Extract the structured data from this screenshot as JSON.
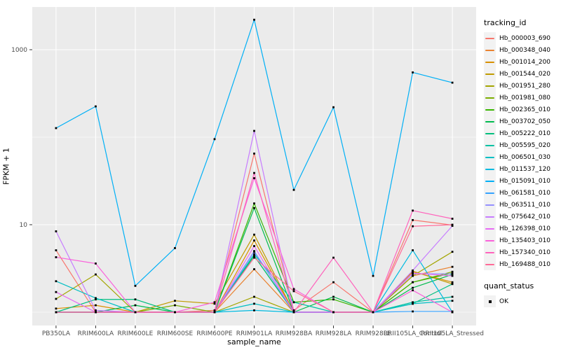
{
  "chart_data": {
    "type": "line",
    "title": "",
    "xlabel": "sample_name",
    "ylabel": "FPKM + 1",
    "y_scale": "log10",
    "y_tick_labels": [
      "1000",
      "10"
    ],
    "y_tick_values": [
      1000,
      10
    ],
    "y_minor_gridline_values": [
      100,
      1
    ],
    "ylim": [
      0.7,
      3080
    ],
    "grid": true,
    "legend_position": "right",
    "panel_bg": "#EBEBEB",
    "grid_color": "#FFFFFF",
    "tick_text_color": "#4D4D4D",
    "point_color": "#000000",
    "categories": [
      "PB350LA",
      "RRIM600LA",
      "RRIM600LE",
      "RRIM600SE",
      "RRIM600PE",
      "RRIM901LA",
      "RRIM928BA",
      "RRIM928LA",
      "RRIM928LE",
      "RRII105LA_Control",
      "RRII105LA_Stressed"
    ],
    "series": [
      {
        "name": "Hb_000003_690",
        "color": "#F8766D",
        "values": [
          5.1,
          1.0,
          1.0,
          1.0,
          1.05,
          65,
          1.05,
          2.2,
          1.0,
          11.3,
          9.9
        ]
      },
      {
        "name": "Hb_000348_040",
        "color": "#EA8331",
        "values": [
          1.0,
          1.0,
          1.0,
          1.0,
          1.0,
          3.1,
          1.0,
          1.0,
          1.0,
          2.6,
          3.3
        ]
      },
      {
        "name": "Hb_001014_200",
        "color": "#D89000",
        "values": [
          1.1,
          1.2,
          1.0,
          1.0,
          1.0,
          6.6,
          1.0,
          1.0,
          1.0,
          2.9,
          2.2
        ]
      },
      {
        "name": "Hb_001544_020",
        "color": "#C09B00",
        "values": [
          1.0,
          1.0,
          1.0,
          1.35,
          1.25,
          7.7,
          1.0,
          1.0,
          1.0,
          2.95,
          2.1
        ]
      },
      {
        "name": "Hb_001951_280",
        "color": "#A3A500",
        "values": [
          1.42,
          2.7,
          1.0,
          1.0,
          1.0,
          1.5,
          1.0,
          1.0,
          1.0,
          2.6,
          4.9
        ]
      },
      {
        "name": "Hb_001981_080",
        "color": "#7CAE00",
        "values": [
          1.0,
          1.0,
          1.0,
          1.2,
          1.0,
          4.4,
          1.0,
          1.0,
          1.0,
          2.2,
          2.9
        ]
      },
      {
        "name": "Hb_002365_010",
        "color": "#39B600",
        "values": [
          1.0,
          1.0,
          1.0,
          1.0,
          1.0,
          17.5,
          1.3,
          1.4,
          1.0,
          2.2,
          2.8
        ]
      },
      {
        "name": "Hb_003702_050",
        "color": "#00BB4E",
        "values": [
          1.0,
          1.0,
          1.2,
          1.0,
          1.0,
          15.5,
          1.0,
          1.5,
          1.0,
          1.9,
          2.7
        ]
      },
      {
        "name": "Hb_005222_010",
        "color": "#00BF7D",
        "values": [
          1.0,
          1.4,
          1.4,
          1.0,
          1.0,
          4.4,
          1.0,
          1.0,
          1.0,
          1.25,
          2.1
        ]
      },
      {
        "name": "Hb_005595_020",
        "color": "#00C1A3",
        "values": [
          1.0,
          1.0,
          1.0,
          1.0,
          1.0,
          4.6,
          1.3,
          1.0,
          1.0,
          1.3,
          1.5
        ]
      },
      {
        "name": "Hb_006501_030",
        "color": "#00BFC4",
        "values": [
          2.26,
          1.45,
          1.0,
          1.0,
          1.0,
          1.25,
          1.0,
          1.0,
          1.0,
          1.25,
          1.35
        ]
      },
      {
        "name": "Hb_011537_120",
        "color": "#00BAE0",
        "values": [
          1.0,
          1.0,
          1.0,
          1.0,
          1.0,
          1.05,
          1.0,
          1.0,
          1.0,
          5.1,
          1.0
        ]
      },
      {
        "name": "Hb_015091_010",
        "color": "#00B0F6",
        "values": [
          127,
          225,
          2.0,
          5.4,
          95,
          2200,
          25,
          220,
          2.6,
          550,
          420
        ]
      },
      {
        "name": "Hb_061581_010",
        "color": "#35A2FF",
        "values": [
          1.0,
          1.0,
          1.0,
          1.0,
          1.0,
          4.9,
          1.0,
          1.0,
          1.0,
          1.02,
          1.02
        ]
      },
      {
        "name": "Hb_063511_010",
        "color": "#9590FF",
        "values": [
          1.0,
          1.0,
          1.0,
          1.0,
          1.0,
          5.0,
          1.0,
          1.0,
          1.0,
          2.75,
          2.75
        ]
      },
      {
        "name": "Hb_075642_010",
        "color": "#C77CFF",
        "values": [
          8.4,
          1.05,
          1.0,
          1.0,
          1.0,
          118,
          1.0,
          1.0,
          1.0,
          3.0,
          9.7
        ]
      },
      {
        "name": "Hb_126398_010",
        "color": "#E76BF3",
        "values": [
          1.7,
          1.0,
          1.0,
          1.0,
          1.0,
          5.7,
          1.0,
          1.0,
          1.0,
          2.8,
          2.6
        ]
      },
      {
        "name": "Hb_135403_010",
        "color": "#FA62DB",
        "values": [
          4.25,
          3.6,
          1.0,
          1.0,
          1.3,
          34,
          1.84,
          1.0,
          1.0,
          1.78,
          1.0
        ]
      },
      {
        "name": "Hb_157340_010",
        "color": "#FF62BC",
        "values": [
          1.0,
          1.0,
          1.0,
          1.0,
          1.0,
          39,
          1.0,
          4.2,
          1.0,
          14.5,
          11.7
        ]
      },
      {
        "name": "Hb_169488_010",
        "color": "#FF6A98",
        "values": [
          1.0,
          1.0,
          1.0,
          1.0,
          1.0,
          4.2,
          1.74,
          1.0,
          1.0,
          9.6,
          10.0
        ]
      }
    ]
  },
  "legend": {
    "tracking_title": "tracking_id",
    "quant_title": "quant_status",
    "quant_items": [
      {
        "label": "OK"
      }
    ]
  }
}
